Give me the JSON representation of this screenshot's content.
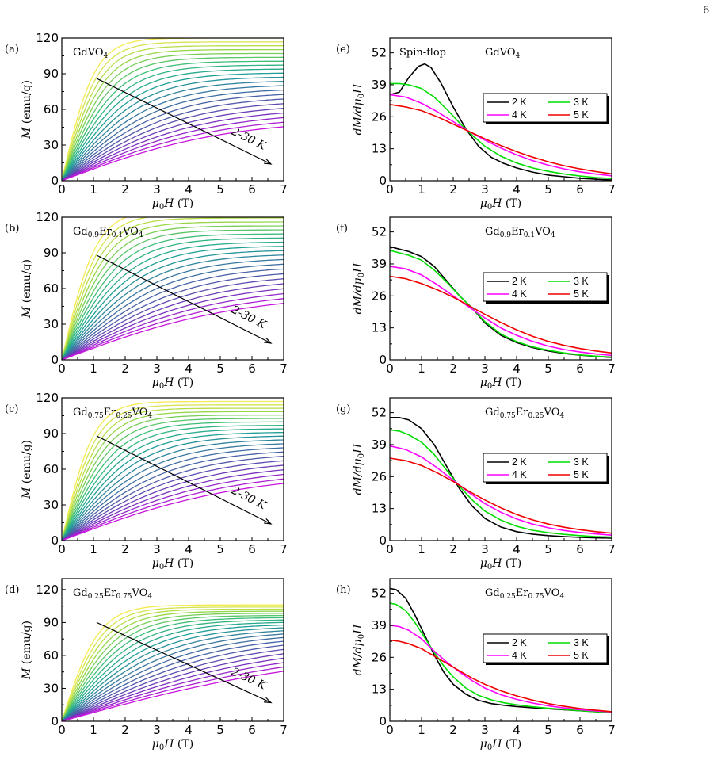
{
  "page_number": "6",
  "chart_data": [
    {
      "panel": "(a)",
      "type": "line",
      "title_base": "GdVO",
      "title_sub1": "4",
      "xlabel": "μ0H (T)",
      "ylabel": "M (emu/g)",
      "xlim": [
        0,
        7
      ],
      "ylim": [
        0,
        120
      ],
      "xticks": [
        0,
        1,
        2,
        3,
        4,
        5,
        6,
        7
      ],
      "yticks": [
        0,
        30,
        60,
        90,
        120
      ],
      "arrow_label": "2-30 K",
      "arrow": {
        "from": [
          1.1,
          86
        ],
        "to": [
          6.6,
          14
        ]
      },
      "curve_count": 22,
      "sat_low": 120,
      "sat_high": 52,
      "slope_low": 115,
      "slope_high": 10,
      "slope_exp": 1.0
    },
    {
      "panel": "(b)",
      "type": "line",
      "title_base": "Gd",
      "title_sub1": "0.9",
      "title_mid": "Er",
      "title_sub2": "0.1",
      "title_end": "VO",
      "title_sub3": "4",
      "xlabel": "μ0H (T)",
      "ylabel": "M (emu/g)",
      "xlim": [
        0,
        7
      ],
      "ylim": [
        0,
        120
      ],
      "xticks": [
        0,
        1,
        2,
        3,
        4,
        5,
        6,
        7
      ],
      "yticks": [
        0,
        30,
        60,
        90,
        120
      ],
      "arrow_label": "2-30 K",
      "arrow": {
        "from": [
          1.1,
          88
        ],
        "to": [
          6.6,
          14
        ]
      },
      "curve_count": 22,
      "sat_low": 126,
      "sat_high": 56,
      "slope_low": 115,
      "slope_high": 10,
      "slope_exp": 1.0
    },
    {
      "panel": "(c)",
      "type": "line",
      "title_base": "Gd",
      "title_sub1": "0.75",
      "title_mid": "Er",
      "title_sub2": "0.25",
      "title_end": "VO",
      "title_sub3": "4",
      "xlabel": "μ0H (T)",
      "ylabel": "M (emu/g)",
      "xlim": [
        0,
        7
      ],
      "ylim": [
        0,
        120
      ],
      "xticks": [
        0,
        1,
        2,
        3,
        4,
        5,
        6,
        7
      ],
      "yticks": [
        0,
        30,
        60,
        90,
        120
      ],
      "arrow_label": "2-30 K",
      "arrow": {
        "from": [
          1.1,
          88
        ],
        "to": [
          6.6,
          14
        ]
      },
      "curve_count": 22,
      "sat_low": 117,
      "sat_high": 57,
      "slope_low": 115,
      "slope_high": 10,
      "slope_exp": 1.0
    },
    {
      "panel": "(d)",
      "type": "line",
      "title_base": "Gd",
      "title_sub1": "0.25",
      "title_mid": "Er",
      "title_sub2": "0.75",
      "title_end": "VO",
      "title_sub3": "4",
      "xlabel": "μ0H (T)",
      "ylabel": "M (emu/g)",
      "xlim": [
        0,
        7
      ],
      "ylim": [
        0,
        130
      ],
      "xticks": [
        0,
        1,
        2,
        3,
        4,
        5,
        6,
        7
      ],
      "yticks": [
        0,
        30,
        60,
        90,
        120
      ],
      "arrow_label": "2-30 K",
      "arrow": {
        "from": [
          1.1,
          90
        ],
        "to": [
          6.6,
          17
        ]
      },
      "curve_count": 22,
      "sat_low": 106,
      "sat_high": 66,
      "slope_low": 90,
      "slope_high": 8,
      "slope_exp": 1.0
    },
    {
      "panel": "(e)",
      "type": "line",
      "title_base": "GdVO",
      "title_sub1": "4",
      "annotation": "Spin-flop",
      "xlabel": "μ0H (T)",
      "ylabel": "dM/dμ0H",
      "xlim": [
        0,
        7
      ],
      "ylim": [
        0,
        58
      ],
      "xticks": [
        0,
        1,
        2,
        3,
        4,
        5,
        6,
        7
      ],
      "yticks": [
        0,
        13,
        26,
        39,
        52
      ],
      "legend": "top-right",
      "series": [
        {
          "name": "2 K",
          "color": "#000000",
          "x": [
            0,
            0.3,
            0.6,
            0.9,
            1.1,
            1.3,
            1.6,
            2,
            2.4,
            2.8,
            3.2,
            3.6,
            4,
            4.5,
            5,
            5.5,
            6,
            6.5,
            7
          ],
          "y": [
            35,
            36,
            42,
            46.5,
            47.5,
            46,
            40,
            30,
            21,
            14,
            9.5,
            7,
            5.2,
            3.5,
            2.3,
            1.6,
            1.0,
            0.6,
            0.3
          ]
        },
        {
          "name": "3 K",
          "color": "#00dd00",
          "x": [
            0,
            0.3,
            0.6,
            1,
            1.4,
            1.8,
            2.2,
            2.6,
            3,
            3.5,
            4,
            4.5,
            5,
            5.5,
            6,
            6.5,
            7
          ],
          "y": [
            39.5,
            39.5,
            39,
            37.5,
            34,
            29,
            23.5,
            18.5,
            14,
            10,
            7.2,
            5.2,
            3.8,
            2.7,
            1.9,
            1.3,
            0.9
          ]
        },
        {
          "name": "4 K",
          "color": "#ff00ff",
          "x": [
            0,
            0.5,
            1,
            1.5,
            2,
            2.5,
            3,
            3.5,
            4,
            4.5,
            5,
            5.5,
            6,
            6.5,
            7
          ],
          "y": [
            35,
            34,
            31.5,
            28,
            24,
            20,
            16.5,
            13.3,
            10.5,
            8.2,
            6.3,
            4.8,
            3.6,
            2.7,
            2.0
          ]
        },
        {
          "name": "5 K",
          "color": "#ee0000",
          "x": [
            0,
            0.5,
            1,
            1.5,
            2,
            2.5,
            3,
            3.5,
            4,
            4.5,
            5,
            5.5,
            6,
            6.5,
            7
          ],
          "y": [
            31,
            30,
            28.5,
            26,
            23,
            20,
            17,
            14.3,
            11.8,
            9.6,
            7.7,
            6.1,
            4.8,
            3.7,
            2.8
          ]
        }
      ]
    },
    {
      "panel": "(f)",
      "type": "line",
      "title_base": "Gd",
      "title_sub1": "0.9",
      "title_mid": "Er",
      "title_sub2": "0.1",
      "title_end": "VO",
      "title_sub3": "4",
      "xlabel": "μ0H (T)",
      "ylabel": "dM/dμ0H",
      "xlim": [
        0,
        7
      ],
      "ylim": [
        0,
        58
      ],
      "xticks": [
        0,
        1,
        2,
        3,
        4,
        5,
        6,
        7
      ],
      "yticks": [
        0,
        13,
        26,
        39,
        52
      ],
      "legend": "top-right",
      "series": [
        {
          "name": "2 K",
          "color": "#000000",
          "x": [
            0,
            0.3,
            0.6,
            1,
            1.4,
            1.8,
            2.2,
            2.6,
            3,
            3.5,
            4,
            4.5,
            5,
            5.5,
            6,
            6.5,
            7
          ],
          "y": [
            46,
            45,
            44,
            42,
            38,
            32,
            26,
            21,
            15,
            10,
            7,
            5,
            3.6,
            2.6,
            1.9,
            1.4,
            1.0
          ]
        },
        {
          "name": "3 K",
          "color": "#00dd00",
          "x": [
            0,
            0.3,
            0.6,
            1,
            1.4,
            1.8,
            2.2,
            2.6,
            3,
            3.5,
            4,
            4.5,
            5,
            5.5,
            6,
            6.5,
            7
          ],
          "y": [
            44.5,
            43.5,
            42.5,
            40.5,
            36.5,
            31.5,
            26,
            21,
            15.5,
            10.5,
            7.4,
            5.3,
            3.9,
            2.8,
            2.0,
            1.5,
            1.1
          ]
        },
        {
          "name": "4 K",
          "color": "#ff00ff",
          "x": [
            0,
            0.5,
            1,
            1.5,
            2,
            2.5,
            3,
            3.5,
            4,
            4.5,
            5,
            5.5,
            6,
            6.5,
            7
          ],
          "y": [
            38,
            37,
            34.5,
            30.5,
            26,
            21.5,
            17,
            13,
            10,
            7.5,
            5.6,
            4.2,
            3.2,
            2.4,
            1.8
          ]
        },
        {
          "name": "5 K",
          "color": "#ee0000",
          "x": [
            0,
            0.5,
            1,
            1.5,
            2,
            2.5,
            3,
            3.5,
            4,
            4.5,
            5,
            5.5,
            6,
            6.5,
            7
          ],
          "y": [
            34,
            33,
            31,
            28.5,
            25.5,
            22,
            18.5,
            15.2,
            12.2,
            9.6,
            7.5,
            5.9,
            4.6,
            3.6,
            2.8
          ]
        }
      ]
    },
    {
      "panel": "(g)",
      "type": "line",
      "title_base": "Gd",
      "title_sub1": "0.75",
      "title_mid": "Er",
      "title_sub2": "0.25",
      "title_end": "VO",
      "title_sub3": "4",
      "xlabel": "μ0H (T)",
      "ylabel": "dM/dμ0H",
      "xlim": [
        0,
        7
      ],
      "ylim": [
        0,
        58
      ],
      "xticks": [
        0,
        1,
        2,
        3,
        4,
        5,
        6,
        7
      ],
      "yticks": [
        0,
        13,
        26,
        39,
        52
      ],
      "legend": "top-right",
      "series": [
        {
          "name": "2 K",
          "color": "#000000",
          "x": [
            0,
            0.3,
            0.6,
            1,
            1.4,
            1.8,
            2.2,
            2.6,
            3,
            3.5,
            4,
            4.5,
            5,
            5.5,
            6,
            6.5,
            7
          ],
          "y": [
            50,
            50,
            49,
            45.5,
            39,
            30,
            21,
            14,
            9,
            5.5,
            3.6,
            2.6,
            2.0,
            1.6,
            1.3,
            1.1,
            1.0
          ]
        },
        {
          "name": "3 K",
          "color": "#00dd00",
          "x": [
            0,
            0.3,
            0.6,
            1,
            1.4,
            1.8,
            2.2,
            2.6,
            3,
            3.5,
            4,
            4.5,
            5,
            5.5,
            6,
            6.5,
            7
          ],
          "y": [
            45,
            44.5,
            43,
            40,
            35,
            28.5,
            22,
            16.5,
            12,
            8.3,
            5.8,
            4.2,
            3.2,
            2.5,
            2.0,
            1.6,
            1.4
          ]
        },
        {
          "name": "4 K",
          "color": "#ff00ff",
          "x": [
            0,
            0.5,
            1,
            1.5,
            2,
            2.5,
            3,
            3.5,
            4,
            4.5,
            5,
            5.5,
            6,
            6.5,
            7
          ],
          "y": [
            38.5,
            37,
            34,
            29.5,
            24.5,
            19.5,
            15,
            11.5,
            8.8,
            6.7,
            5.2,
            4.1,
            3.3,
            2.7,
            2.2
          ]
        },
        {
          "name": "5 K",
          "color": "#ee0000",
          "x": [
            0,
            0.5,
            1,
            1.5,
            2,
            2.5,
            3,
            3.5,
            4,
            4.5,
            5,
            5.5,
            6,
            6.5,
            7
          ],
          "y": [
            33.5,
            32.5,
            30.5,
            27.5,
            24,
            20,
            16.5,
            13.3,
            10.6,
            8.4,
            6.7,
            5.4,
            4.4,
            3.6,
            3.0
          ]
        }
      ]
    },
    {
      "panel": "(h)",
      "type": "line",
      "title_base": "Gd",
      "title_sub1": "0.25",
      "title_mid": "Er",
      "title_sub2": "0.75",
      "title_end": "VO",
      "title_sub3": "4",
      "xlabel": "μ0H (T)",
      "ylabel": "dM/dμ0H",
      "xlim": [
        0,
        7
      ],
      "ylim": [
        0,
        58
      ],
      "xticks": [
        0,
        1,
        2,
        3,
        4,
        5,
        6,
        7
      ],
      "yticks": [
        0,
        13,
        26,
        39,
        52
      ],
      "legend": "top-right",
      "series": [
        {
          "name": "2 K",
          "color": "#000000",
          "x": [
            0,
            0.2,
            0.5,
            0.8,
            1.1,
            1.4,
            1.7,
            2,
            2.4,
            2.8,
            3.2,
            3.6,
            4,
            4.5,
            5,
            5.5,
            6,
            6.5,
            7
          ],
          "y": [
            54,
            53.5,
            50,
            43,
            35,
            27,
            20,
            15,
            11,
            8.5,
            7.2,
            6.5,
            6,
            5.5,
            5.1,
            4.7,
            4.3,
            3.9,
            3.5
          ]
        },
        {
          "name": "3 K",
          "color": "#00dd00",
          "x": [
            0,
            0.2,
            0.5,
            0.8,
            1.1,
            1.4,
            1.7,
            2,
            2.4,
            2.8,
            3.2,
            3.6,
            4,
            4.5,
            5,
            5.5,
            6,
            6.5,
            7
          ],
          "y": [
            48,
            47.5,
            45,
            40,
            34,
            28,
            22.5,
            18,
            13.5,
            10.5,
            8.7,
            7.5,
            6.7,
            5.9,
            5.3,
            4.8,
            4.3,
            3.9,
            3.6
          ]
        },
        {
          "name": "4 K",
          "color": "#ff00ff",
          "x": [
            0,
            0.3,
            0.6,
            1,
            1.4,
            1.8,
            2.2,
            2.6,
            3,
            3.5,
            4,
            4.5,
            5,
            5.5,
            6,
            6.5,
            7
          ],
          "y": [
            39,
            38.5,
            37,
            33.5,
            28.5,
            24,
            20,
            16.5,
            13.5,
            10.8,
            8.9,
            7.4,
            6.3,
            5.4,
            4.7,
            4.2,
            3.8
          ]
        },
        {
          "name": "5 K",
          "color": "#ee0000",
          "x": [
            0,
            0.3,
            0.6,
            1,
            1.4,
            1.8,
            2.2,
            2.6,
            3,
            3.5,
            4,
            4.5,
            5,
            5.5,
            6,
            6.5,
            7
          ],
          "y": [
            33,
            32.5,
            31.5,
            29.5,
            26.5,
            23.5,
            20.5,
            17.5,
            15,
            12.4,
            10.3,
            8.6,
            7.2,
            6.1,
            5.2,
            4.5,
            3.9
          ]
        }
      ]
    }
  ]
}
